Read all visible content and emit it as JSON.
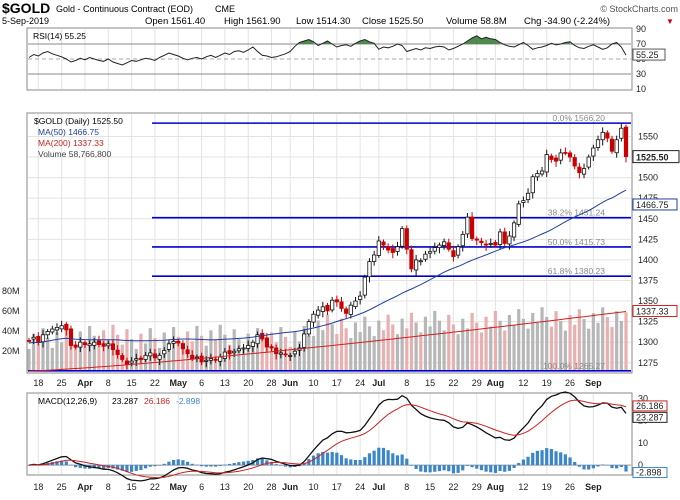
{
  "header": {
    "symbol": "$GOLD",
    "name": "Gold - Continuous Contract (EOD)",
    "exchange": "CME",
    "date": "5-Sep-2019",
    "open": "Open 1561.40",
    "high": "High 1561.90",
    "low": "Low 1514.30",
    "close": "Close 1525.50",
    "volume": "Volume 58.8M",
    "chg": "Chg -34.90 (-2.24%)",
    "chg_arrow": "▼",
    "brand": "© StockCharts.com"
  },
  "rsi_panel": {
    "label": "RSI(14) 55.25",
    "last_value": "55.25",
    "levels": [
      "90",
      "70",
      "50",
      "30",
      "10"
    ]
  },
  "price_panel": {
    "title": "$GOLD (Daily) 1525.50",
    "legend_ma50": "MA(50) 1466.75",
    "legend_ma200": "MA(200) 1337.33",
    "legend_volume": "Volume 58,766,800",
    "last_price": "1525.50",
    "ma50_last": "1466.75",
    "ma200_last": "1337.33",
    "price_ticks": [
      "1550",
      "1525",
      "1500",
      "1475",
      "1450",
      "1425",
      "1400",
      "1375",
      "1350",
      "1325",
      "1300",
      "1275"
    ],
    "volume_ticks": [
      "80M",
      "60M",
      "40M",
      "20M"
    ],
    "fib_labels": [
      "0.0% 1566.20",
      "38.2% 1451.24",
      "50.0% 1415.73",
      "61.8% 1380.23",
      "100.0% 1265.27"
    ]
  },
  "macd_panel": {
    "label": "MACD(12,26,9)",
    "macd_value": "23.287",
    "signal_value": "26.186",
    "hist_value": "-2.898",
    "ticks": [
      "30",
      "20",
      "10",
      "0"
    ]
  },
  "x_axis": {
    "labels": [
      "18",
      "25",
      "Apr",
      "8",
      "15",
      "22",
      "May",
      "6",
      "13",
      "20",
      "28",
      "Jun",
      "10",
      "17",
      "24",
      "Jul",
      "8",
      "15",
      "22",
      "29",
      "Aug",
      "12",
      "19",
      "26",
      "Sep"
    ]
  },
  "colors": {
    "up": "#111111",
    "down": "#cc0000",
    "ma50": "#1f3fa0",
    "ma200": "#cc2222",
    "fib": "#0000cc",
    "volume_up": "#b7b7b7",
    "volume_down": "#e8b0b0",
    "rsi_fill": "#4e8a4e",
    "macd_hist": "#3a86c8"
  },
  "chart_data": [
    {
      "type": "candlestick",
      "title": "$GOLD (Daily) 1525.50",
      "x_start": "2019-03-14",
      "x_end": "2019-09-05",
      "ylim": [
        1265,
        1570
      ],
      "close_series": [
        1302,
        1306,
        1300,
        1309,
        1313,
        1316,
        1318,
        1320,
        1315,
        1296,
        1294,
        1300,
        1297,
        1298,
        1300,
        1297,
        1295,
        1298,
        1291,
        1285,
        1279,
        1273,
        1277,
        1280,
        1279,
        1284,
        1287,
        1281,
        1284,
        1290,
        1298,
        1301,
        1299,
        1292,
        1286,
        1280,
        1282,
        1276,
        1278,
        1280,
        1278,
        1282,
        1288,
        1286,
        1289,
        1292,
        1293,
        1296,
        1300,
        1309,
        1304,
        1294,
        1293,
        1286,
        1287,
        1285,
        1284,
        1289,
        1293,
        1310,
        1325,
        1334,
        1339,
        1343,
        1338,
        1351,
        1349,
        1341,
        1335,
        1345,
        1350,
        1356,
        1379,
        1398,
        1406,
        1423,
        1418,
        1412,
        1409,
        1416,
        1438,
        1413,
        1389,
        1400,
        1399,
        1407,
        1410,
        1415,
        1418,
        1422,
        1413,
        1404,
        1416,
        1431,
        1452,
        1426,
        1424,
        1421,
        1418,
        1420,
        1418,
        1434,
        1420,
        1429,
        1445,
        1468,
        1472,
        1481,
        1501,
        1505,
        1508,
        1528,
        1522,
        1520,
        1530,
        1530,
        1525,
        1514,
        1506,
        1511,
        1525,
        1536,
        1546,
        1555,
        1548,
        1532,
        1546,
        1560,
        1525.5
      ],
      "ma50": {
        "name": "MA(50)",
        "last": 1466.75,
        "start": 1295
      },
      "ma200": {
        "name": "MA(200)",
        "last": 1337.33,
        "start": 1265
      },
      "volume": {
        "name": "Volume",
        "last": 58766800,
        "ylim": [
          0,
          90000000
        ]
      },
      "fibonacci": [
        {
          "level": "0.0%",
          "value": 1566.2
        },
        {
          "level": "38.2%",
          "value": 1451.24
        },
        {
          "level": "50.0%",
          "value": 1415.73
        },
        {
          "level": "61.8%",
          "value": 1380.23
        },
        {
          "level": "100.0%",
          "value": 1265.27
        }
      ]
    },
    {
      "type": "line",
      "title": "RSI(14)",
      "ylim": [
        10,
        90
      ],
      "values": [
        52,
        56,
        54,
        58,
        60,
        57,
        55,
        53,
        50,
        46,
        48,
        51,
        49,
        52,
        50,
        48,
        47,
        50,
        46,
        44,
        42,
        45,
        48,
        47,
        49,
        51,
        50,
        48,
        52,
        55,
        58,
        56,
        54,
        51,
        49,
        51,
        52,
        50,
        53,
        55,
        52,
        55,
        58,
        56,
        60,
        61,
        59,
        62,
        66,
        60,
        55,
        54,
        52,
        53,
        55,
        57,
        60,
        67,
        72,
        74,
        76,
        73,
        68,
        71,
        74,
        70,
        66,
        68,
        69,
        67,
        71,
        74,
        76,
        73,
        71,
        63,
        66,
        65,
        67,
        70,
        68,
        60,
        62,
        64,
        62,
        65,
        64,
        66,
        67,
        66,
        62,
        64,
        67,
        70,
        74,
        78,
        81,
        77,
        79,
        77,
        76,
        72,
        69,
        67,
        66,
        69,
        72,
        68,
        63,
        65,
        66,
        68,
        71,
        69,
        70,
        72,
        73,
        68,
        65,
        64,
        67,
        69,
        66,
        63,
        65,
        70,
        72,
        66,
        55.25
      ],
      "last": 55.25
    },
    {
      "type": "line",
      "title": "MACD(12,26,9)",
      "ylim": [
        -4,
        32
      ],
      "series": [
        {
          "name": "MACD",
          "last": 23.287
        },
        {
          "name": "Signal",
          "last": 26.186
        },
        {
          "name": "Histogram",
          "last": -2.898
        }
      ]
    }
  ]
}
